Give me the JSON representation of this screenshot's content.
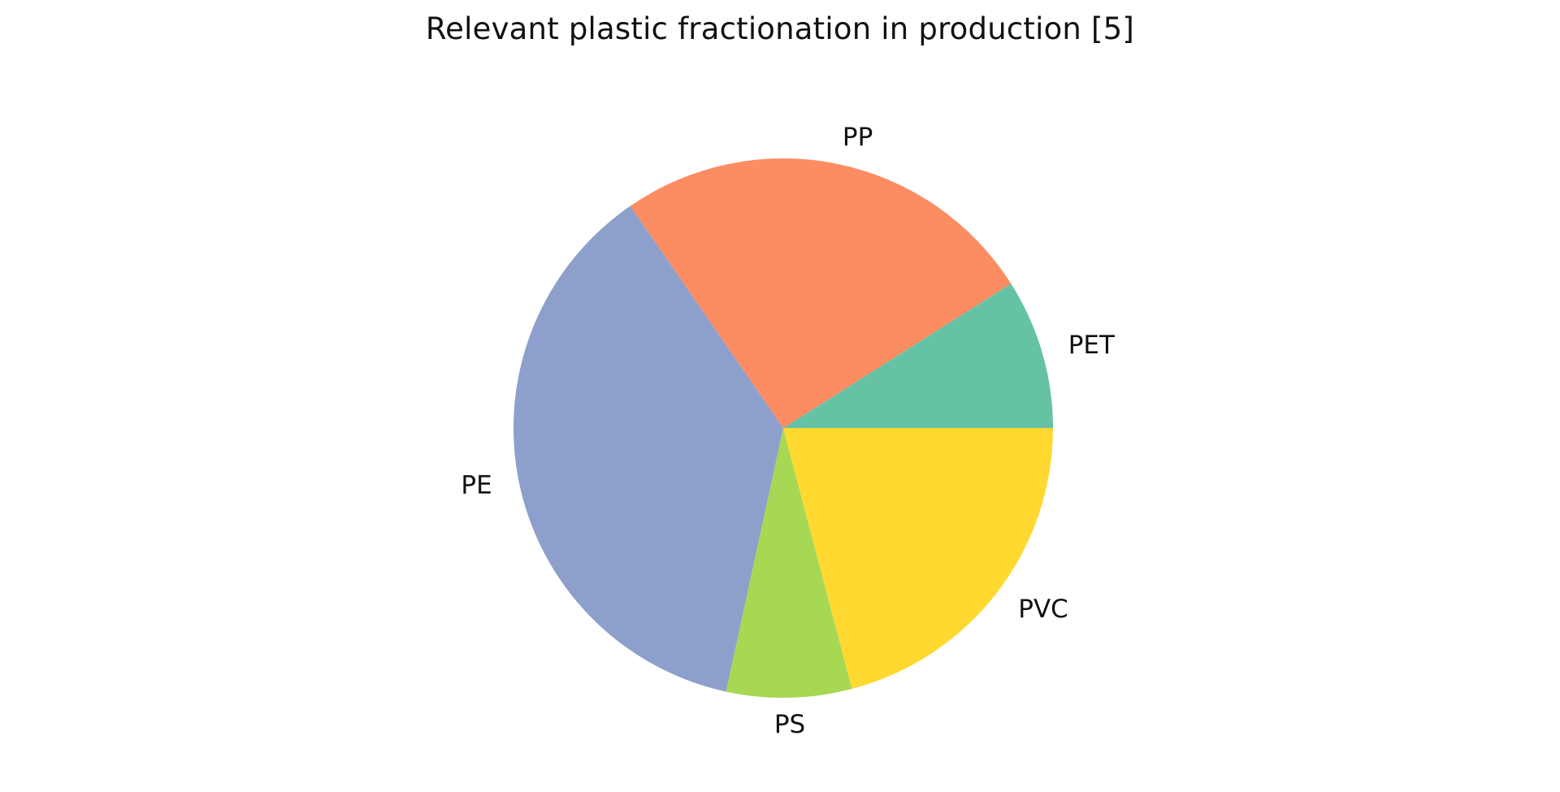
{
  "chart_data": {
    "type": "pie",
    "title": "Relevant plastic fractionation in production [5]",
    "categories": [
      "PET",
      "PP",
      "PE",
      "PS",
      "PVC"
    ],
    "values": [
      9.0,
      25.6,
      37.0,
      7.5,
      20.9
    ],
    "units": "%",
    "start_angle_deg": 0,
    "direction": "counterclockwise",
    "colors": [
      "#66c2a5",
      "#fc8d62",
      "#8da0cb",
      "#a6d854",
      "#ffd92f"
    ],
    "legend": "none",
    "labels_position": "outside"
  }
}
